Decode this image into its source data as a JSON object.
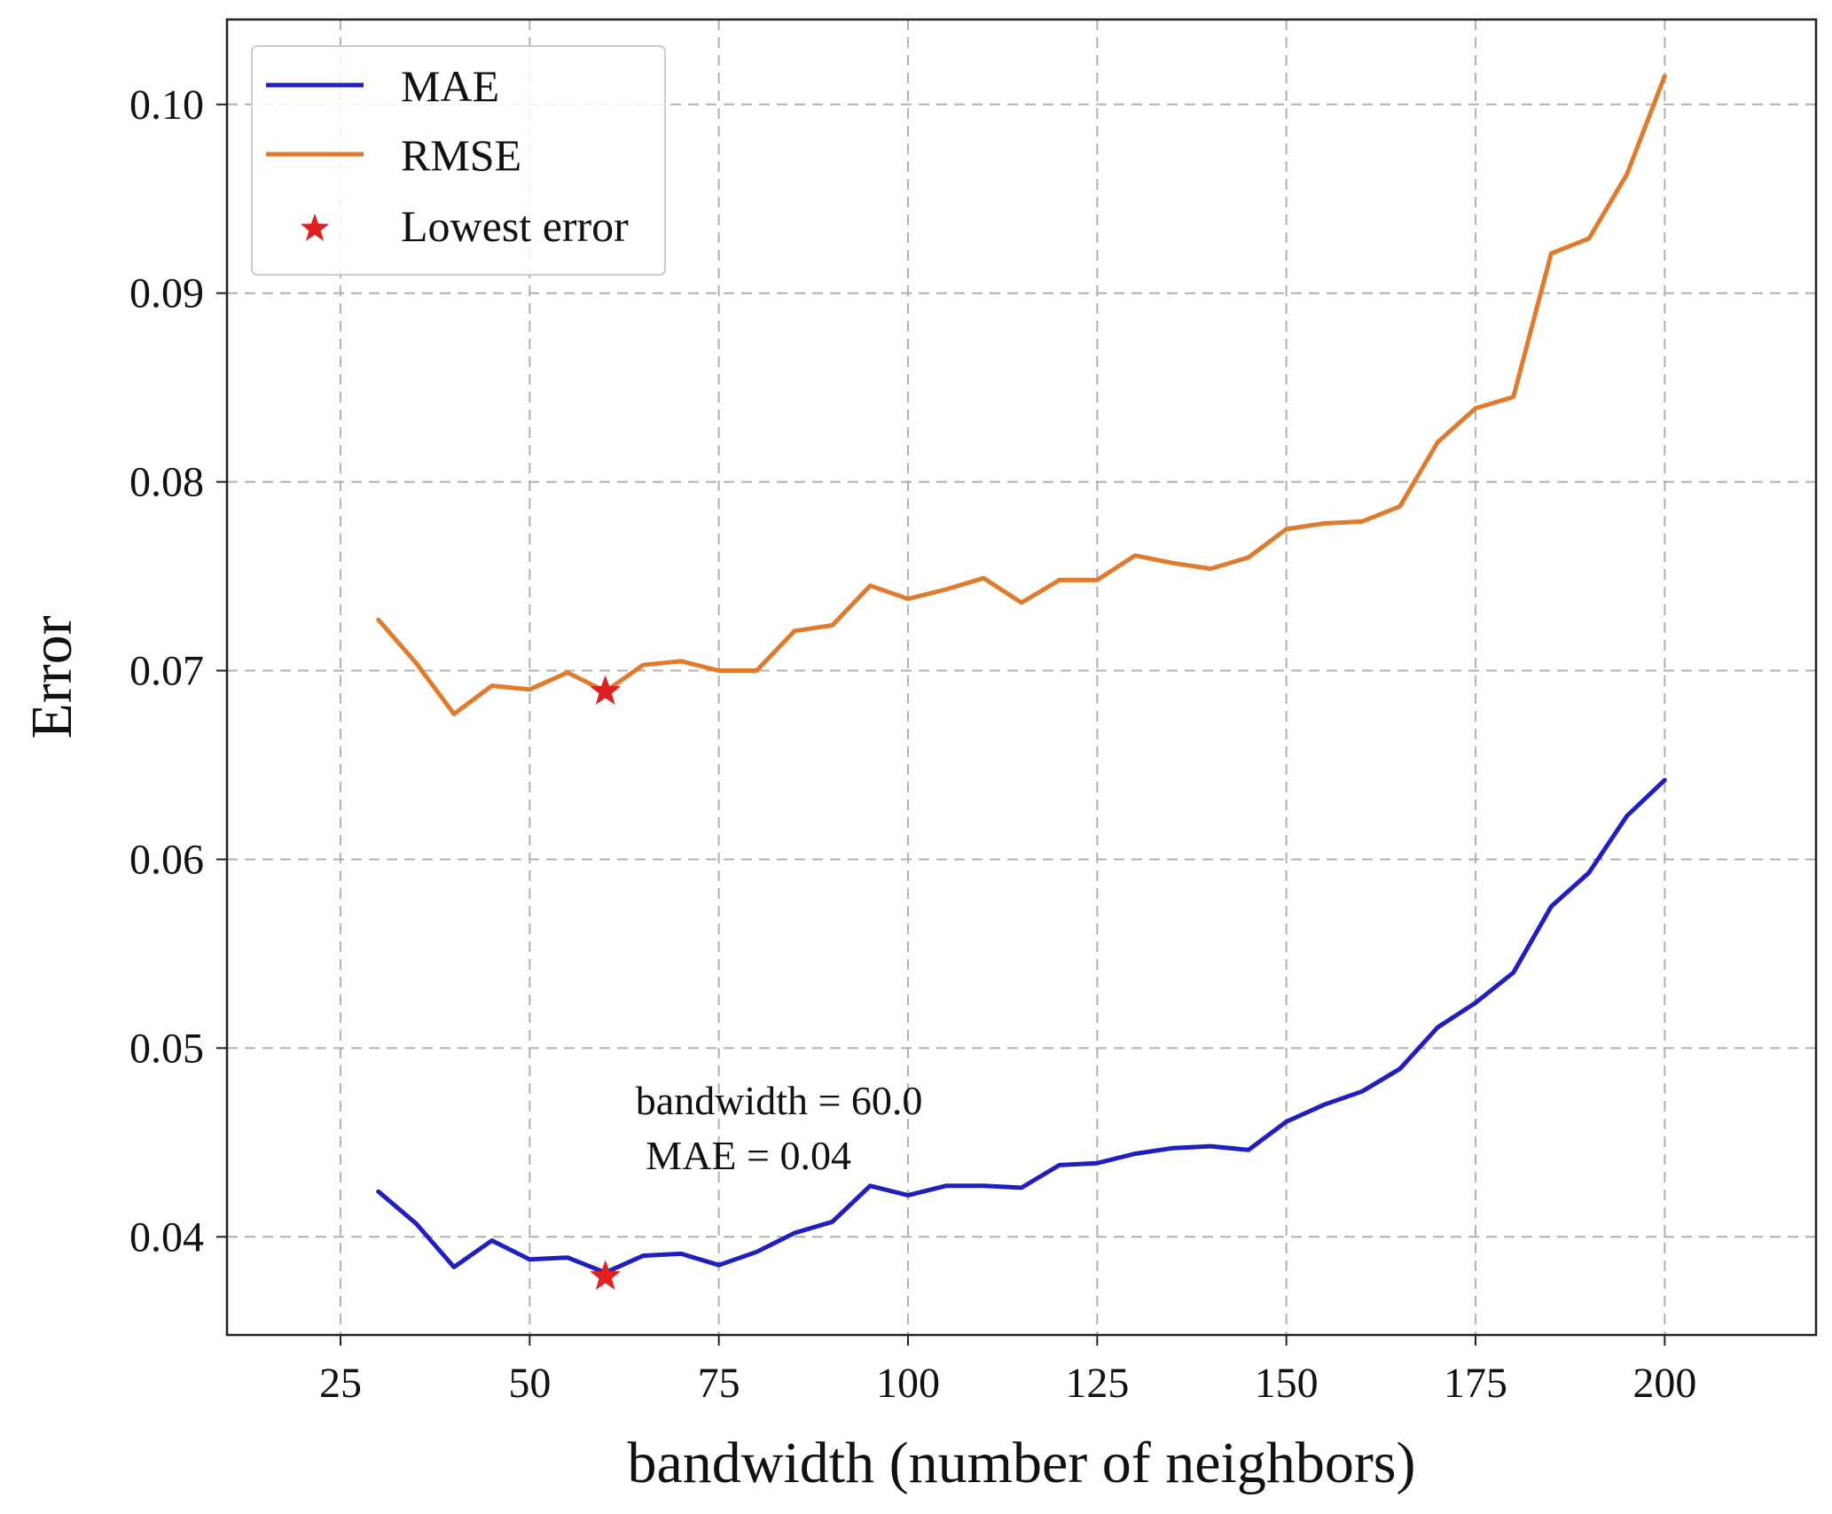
{
  "chart_data": {
    "type": "line",
    "title": "",
    "xlabel": "bandwidth (number of neighbors)",
    "ylabel": "Error",
    "xlim": [
      10,
      220
    ],
    "ylim": [
      0.0348,
      0.1045
    ],
    "xticks": [
      25,
      50,
      75,
      100,
      125,
      150,
      175,
      200
    ],
    "yticks": [
      0.04,
      0.05,
      0.06,
      0.07,
      0.08,
      0.09,
      0.1
    ],
    "xtick_labels": [
      "25",
      "50",
      "75",
      "100",
      "125",
      "150",
      "175",
      "200"
    ],
    "ytick_labels": [
      "0.04",
      "0.05",
      "0.06",
      "0.07",
      "0.08",
      "0.09",
      "0.10"
    ],
    "grid": true,
    "legend_position": "top-left",
    "x": [
      30,
      35,
      40,
      45,
      50,
      55,
      60,
      65,
      70,
      75,
      80,
      85,
      90,
      95,
      100,
      105,
      110,
      115,
      120,
      125,
      130,
      135,
      140,
      145,
      150,
      155,
      160,
      165,
      170,
      175,
      180,
      185,
      190,
      195,
      200
    ],
    "series": [
      {
        "name": "MAE",
        "color": "#1f1fbf",
        "values": [
          0.0424,
          0.0407,
          0.0384,
          0.0398,
          0.0388,
          0.0389,
          0.0381,
          0.039,
          0.0391,
          0.0385,
          0.0392,
          0.0402,
          0.0408,
          0.0427,
          0.0422,
          0.0427,
          0.0427,
          0.0426,
          0.0438,
          0.0439,
          0.0444,
          0.0447,
          0.0448,
          0.0446,
          0.0461,
          0.047,
          0.0477,
          0.0489,
          0.0511,
          0.0524,
          0.054,
          0.0575,
          0.0593,
          0.0623,
          0.0642
        ]
      },
      {
        "name": "RMSE",
        "color": "#e07b2e",
        "values": [
          0.0727,
          0.0704,
          0.0677,
          0.0692,
          0.069,
          0.0699,
          0.0689,
          0.0703,
          0.0705,
          0.07,
          0.07,
          0.0721,
          0.0724,
          0.0745,
          0.0738,
          0.0743,
          0.0749,
          0.0736,
          0.0748,
          0.0748,
          0.0761,
          0.0757,
          0.0754,
          0.076,
          0.0775,
          0.0778,
          0.0779,
          0.0787,
          0.0821,
          0.0839,
          0.0845,
          0.0921,
          0.0929,
          0.0963,
          0.1015
        ]
      }
    ],
    "markers": [
      {
        "label": "Lowest error",
        "color": "#e02020",
        "x": 60,
        "y": 0.0689,
        "series": "RMSE"
      },
      {
        "label": "Lowest error",
        "color": "#e02020",
        "x": 60,
        "y": 0.0379,
        "series": "MAE"
      }
    ],
    "legend": [
      {
        "label": "MAE",
        "kind": "line",
        "color": "#1f1fbf"
      },
      {
        "label": "RMSE",
        "kind": "line",
        "color": "#e07b2e"
      },
      {
        "label": "Lowest error",
        "kind": "star",
        "color": "#e02020"
      }
    ],
    "annotation": {
      "line1": "bandwidth = 60.0",
      "line2": " MAE = 0.04",
      "anchor_x": 64,
      "anchor_y": 0.0465
    }
  }
}
